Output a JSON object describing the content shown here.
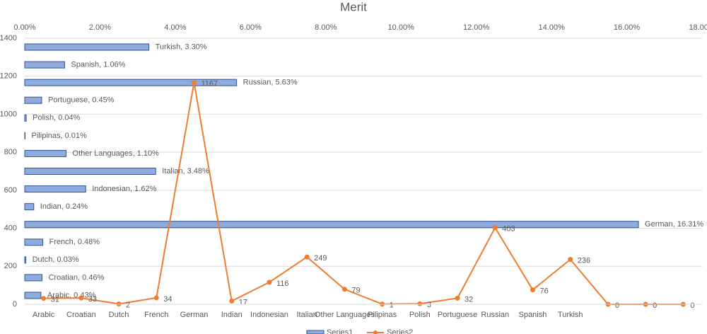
{
  "chart_data": {
    "type": "combo",
    "title": "Merit",
    "categories": [
      "Arabic",
      "Croatian",
      "Dutch",
      "French",
      "German",
      "Indian",
      "Indonesian",
      "Italian",
      "Other Languages",
      "Pilipinas",
      "Polish",
      "Portuguese",
      "Russian",
      "Spanish",
      "Turkish",
      null,
      null,
      null
    ],
    "xlim": [
      0,
      18
    ],
    "xticks": [
      {
        "value": 0,
        "label": "0.00%"
      },
      {
        "value": 2,
        "label": "2.00%"
      },
      {
        "value": 4,
        "label": "4.00%"
      },
      {
        "value": 6,
        "label": "6.00%"
      },
      {
        "value": 8,
        "label": "8.00%"
      },
      {
        "value": 10,
        "label": "10.00%"
      },
      {
        "value": 12,
        "label": "12.00%"
      },
      {
        "value": 14,
        "label": "14.00%"
      },
      {
        "value": 16,
        "label": "16.00%"
      },
      {
        "value": 18,
        "label": "18.00%"
      }
    ],
    "ylim": [
      0,
      1400
    ],
    "yticks": [
      0,
      200,
      400,
      600,
      800,
      1000,
      1200,
      1400
    ],
    "grid": true,
    "legend": "bottom",
    "series": [
      {
        "name": "Series1",
        "type": "bar",
        "color": "#8faadc",
        "edge": "#2f5597",
        "values": [
          0.43,
          0.46,
          0.03,
          0.48,
          16.31,
          0.24,
          1.62,
          3.48,
          1.1,
          0.01,
          0.04,
          0.45,
          5.63,
          1.06,
          3.3,
          null,
          null,
          null
        ],
        "value_labels": [
          "Arabic, 0.43%",
          "Croatian, 0.46%",
          "Dutch, 0.03%",
          "French, 0.48%",
          "German, 16.31%",
          "Indian, 0.24%",
          "Indonesian, 1.62%",
          "Italian, 3.48%",
          "Other Languages, 1.10%",
          "Pilipinas, 0.01%",
          "Polish, 0.04%",
          "Portuguese, 0.45%",
          "Russian, 5.63%",
          "Spanish, 1.06%",
          "Turkish, 3.30%",
          null,
          null,
          null
        ]
      },
      {
        "name": "Series2",
        "type": "line",
        "color": "#ed7d31",
        "values": [
          31,
          33,
          2,
          34,
          1167,
          17,
          116,
          249,
          79,
          1,
          3,
          32,
          403,
          76,
          236,
          0,
          0,
          0
        ]
      }
    ]
  }
}
